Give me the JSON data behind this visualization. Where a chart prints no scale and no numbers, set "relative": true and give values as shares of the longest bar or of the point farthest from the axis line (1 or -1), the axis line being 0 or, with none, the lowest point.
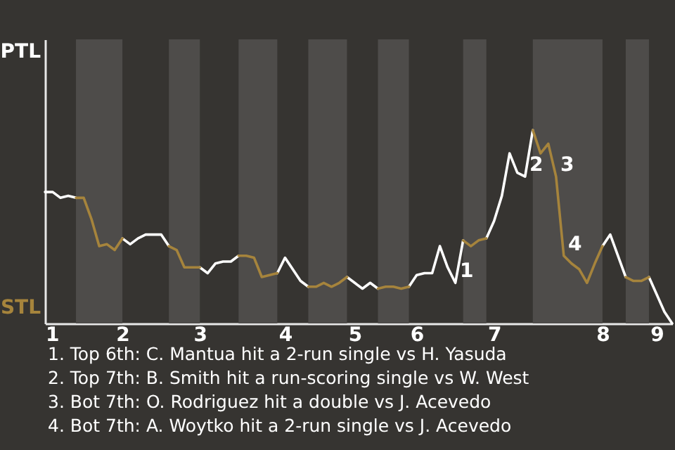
{
  "chart_data": {
    "type": "line",
    "relative": true,
    "categories": [
      "1",
      null,
      null,
      null,
      null,
      null,
      null,
      null,
      null,
      null,
      "2",
      null,
      null,
      null,
      null,
      null,
      null,
      null,
      null,
      null,
      "3",
      null,
      null,
      null,
      null,
      null,
      null,
      null,
      null,
      null,
      null,
      "4",
      null,
      null,
      null,
      null,
      null,
      null,
      null,
      null,
      "5",
      null,
      null,
      null,
      null,
      null,
      null,
      null,
      "6",
      null,
      null,
      null,
      null,
      null,
      null,
      null,
      null,
      null,
      "7",
      null,
      null,
      null,
      null,
      null,
      null,
      null,
      null,
      null,
      null,
      null,
      null,
      null,
      "8",
      null,
      null,
      null,
      null,
      null,
      null,
      "9",
      null,
      null
    ],
    "tick_labels": "x",
    "series": [
      {
        "name": "PTL",
        "color": "#ffffff",
        "values": [
          0.68,
          0.68,
          0.65,
          0.66,
          0.65,
          null,
          null,
          null,
          null,
          null,
          0.44,
          0.41,
          0.44,
          0.46,
          0.46,
          0.46,
          0.4,
          null,
          null,
          null,
          0.29,
          0.26,
          0.31,
          0.32,
          0.32,
          0.35,
          null,
          null,
          null,
          null,
          0.26,
          0.34,
          0.28,
          0.22,
          0.19,
          null,
          null,
          null,
          null,
          0.24,
          0.21,
          0.18,
          0.21,
          0.18,
          null,
          null,
          null,
          0.19,
          0.25,
          0.26,
          0.26,
          0.4,
          0.29,
          0.21,
          0.43,
          null,
          null,
          0.44,
          0.53,
          0.66,
          0.88,
          0.78,
          0.76,
          1.0,
          null,
          null,
          null,
          null,
          null,
          null,
          null,
          null,
          0.4,
          0.46,
          0.35,
          0.24,
          null,
          null,
          0.24,
          0.15,
          0.06,
          0.0
        ]
      },
      {
        "name": "STL",
        "color": "#a6843c",
        "values": [
          null,
          null,
          null,
          null,
          0.65,
          0.65,
          0.54,
          0.4,
          0.41,
          0.38,
          0.44,
          null,
          null,
          null,
          null,
          null,
          0.4,
          0.38,
          0.29,
          0.29,
          0.29,
          null,
          null,
          null,
          null,
          0.35,
          0.35,
          0.34,
          0.24,
          0.25,
          0.26,
          null,
          null,
          null,
          0.19,
          0.19,
          0.21,
          0.19,
          0.21,
          0.24,
          null,
          null,
          null,
          0.18,
          0.19,
          0.19,
          0.18,
          0.19,
          null,
          null,
          null,
          null,
          null,
          null,
          0.43,
          0.4,
          0.43,
          0.44,
          null,
          null,
          null,
          null,
          null,
          1.0,
          0.88,
          0.93,
          0.76,
          0.35,
          0.31,
          0.28,
          0.21,
          0.31,
          0.4,
          null,
          null,
          0.24,
          0.22,
          0.22,
          0.24,
          null,
          null,
          null
        ]
      }
    ],
    "annotations": [
      "1",
      "2",
      "3",
      "4",
      "1. Top 6th: C. Mantua hit a 2-run single vs H. Yasuda",
      "2. Top 7th: B. Smith hit a run-scoring single vs W. West",
      "3. Bot 7th: O. Rodriguez hit a double vs J. Acevedo",
      "4. Bot 7th: A. Woytko hit a 2-run single vs J. Acevedo"
    ]
  }
}
